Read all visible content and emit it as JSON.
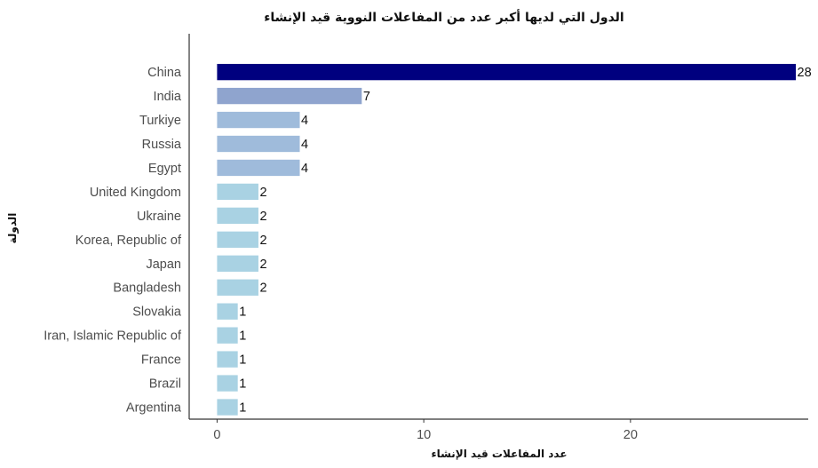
{
  "chart_data": {
    "type": "bar",
    "orientation": "horizontal",
    "title": "الدول التي لديها أكبر عدد من المفاعلات النووية قيد الإنشاء",
    "xlabel": "عدد المفاعلات قيد الإنشاء",
    "ylabel": "الدولة",
    "categories": [
      "China",
      "India",
      "Turkiye",
      "Russia",
      "Egypt",
      "United Kingdom",
      "Ukraine",
      "Korea, Republic of",
      "Japan",
      "Bangladesh",
      "Slovakia",
      "Iran, Islamic Republic of",
      "France",
      "Brazil",
      "Argentina"
    ],
    "values": [
      28,
      7,
      4,
      4,
      4,
      2,
      2,
      2,
      2,
      2,
      1,
      1,
      1,
      1,
      1
    ],
    "colors": [
      "#00007f",
      "#8fa4ce",
      "#9fbbdb",
      "#9fbbdb",
      "#9fbbdb",
      "#a9d2e3",
      "#a9d2e3",
      "#a9d2e3",
      "#a9d2e3",
      "#a9d2e3",
      "#a9d2e3",
      "#a9d2e3",
      "#a9d2e3",
      "#a9d2e3",
      "#a9d2e3"
    ],
    "xticks": [
      0,
      10,
      20
    ],
    "xlim": [
      -1.35,
      28.6
    ],
    "grid": false,
    "legend": "none"
  }
}
